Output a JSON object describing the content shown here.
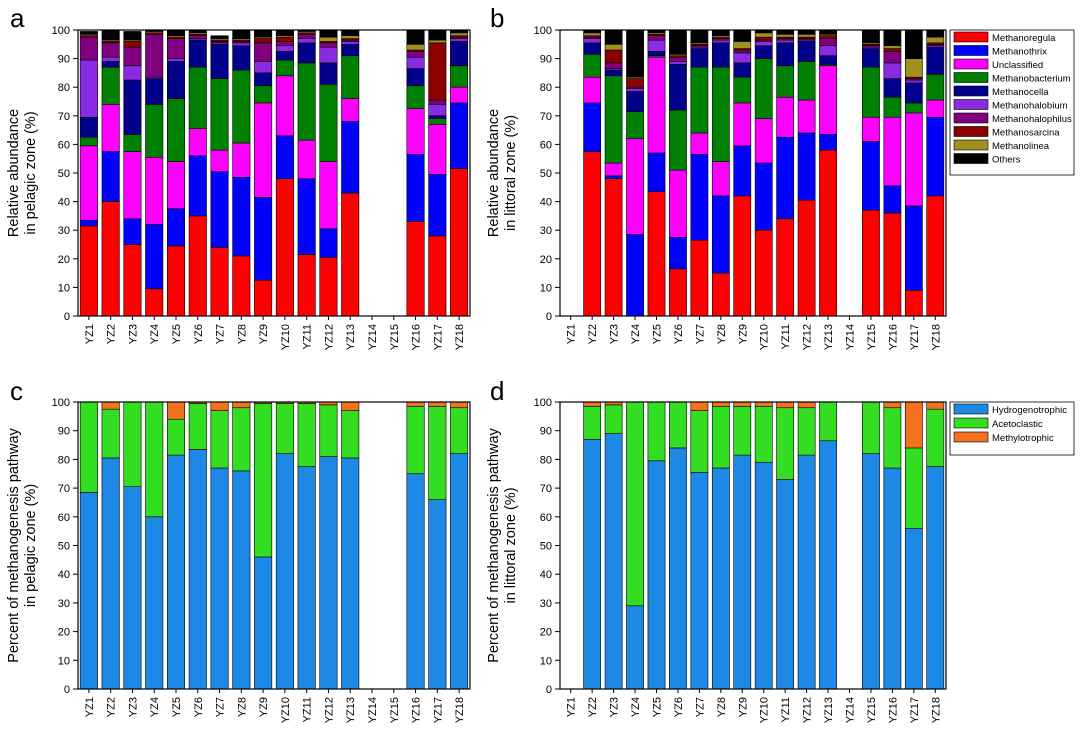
{
  "chart_data": [
    {
      "id": "a",
      "type": "stacked-bar",
      "panel_label": "a",
      "ylabel": [
        "Relative abundance",
        "in pelagic zone (%)"
      ],
      "ylim": [
        0,
        100
      ],
      "yticks": [
        0,
        10,
        20,
        30,
        40,
        50,
        60,
        70,
        80,
        90,
        100
      ],
      "categories": [
        "YZ1",
        "YZ2",
        "YZ3",
        "YZ4",
        "YZ5",
        "YZ6",
        "YZ7",
        "YZ8",
        "YZ9",
        "YZ10",
        "YZ11",
        "YZ12",
        "YZ13",
        "YZ14",
        "YZ15",
        "YZ16",
        "YZ17",
        "YZ18"
      ],
      "series": [
        {
          "name": "Methanoregula",
          "color": "#ff0000",
          "values": [
            31.5,
            40,
            25,
            9.5,
            24.5,
            35,
            24,
            21,
            12.5,
            48,
            21.5,
            20.5,
            43,
            null,
            null,
            33,
            28,
            51.5
          ]
        },
        {
          "name": "Methanothrix",
          "color": "#0000ff",
          "values": [
            2,
            17.5,
            9,
            22.5,
            13,
            21,
            26.5,
            27.5,
            29,
            15,
            26.5,
            10,
            25,
            null,
            null,
            23.5,
            21.5,
            23
          ]
        },
        {
          "name": "Unclassified",
          "color": "#ff00ff",
          "values": [
            26,
            16.5,
            23.5,
            23.5,
            16.5,
            9.5,
            7.5,
            12,
            33,
            21,
            13.5,
            23.5,
            8,
            null,
            null,
            16,
            17.5,
            5.5
          ]
        },
        {
          "name": "Methanobacterium",
          "color": "#008000",
          "values": [
            3,
            13,
            6,
            18.5,
            22,
            21.5,
            25,
            25.5,
            6,
            5.5,
            27,
            27,
            15,
            null,
            null,
            8,
            2,
            7.5
          ]
        },
        {
          "name": "Methanocella",
          "color": "#00008b",
          "values": [
            7,
            2,
            19,
            9,
            13,
            9.5,
            12,
            8.5,
            4.5,
            3,
            7,
            7.5,
            4,
            null,
            null,
            6,
            1,
            8.5
          ]
        },
        {
          "name": "Methanohalobium",
          "color": "#8a2be2",
          "values": [
            20,
            1.5,
            5,
            0.5,
            1,
            0.5,
            0.5,
            1,
            4,
            2,
            1.5,
            5.5,
            1,
            null,
            null,
            4,
            4,
            1
          ]
        },
        {
          "name": "Methanohalophilus",
          "color": "#800080",
          "values": [
            8,
            5,
            6.5,
            15,
            7,
            1,
            0.5,
            0.5,
            6.5,
            1.5,
            1.5,
            1.5,
            0.5,
            null,
            null,
            2,
            1.5,
            0.5
          ]
        },
        {
          "name": "Methanosarcina",
          "color": "#8b0000",
          "values": [
            0.5,
            0.5,
            2,
            0.5,
            0.5,
            0.5,
            0.5,
            0.5,
            1.5,
            1.5,
            0.5,
            0.5,
            0.5,
            null,
            null,
            0.5,
            20,
            0.5
          ]
        },
        {
          "name": "Methanolinea",
          "color": "#a09020",
          "values": [
            0.5,
            0.5,
            0.5,
            0.5,
            0.5,
            0.5,
            0.5,
            0.5,
            0.5,
            0.5,
            0.5,
            1.5,
            1,
            null,
            null,
            2,
            1,
            1
          ]
        },
        {
          "name": "Others",
          "color": "#000000",
          "values": [
            1,
            3.5,
            3,
            0.5,
            2,
            1,
            1,
            3,
            2.5,
            2,
            0.5,
            2.5,
            2,
            null,
            null,
            5,
            3.5,
            1
          ]
        }
      ]
    },
    {
      "id": "b",
      "type": "stacked-bar",
      "panel_label": "b",
      "ylabel": [
        "Relative abundance",
        "in littoral zone (%)"
      ],
      "ylim": [
        0,
        100
      ],
      "yticks": [
        0,
        10,
        20,
        30,
        40,
        50,
        60,
        70,
        80,
        90,
        100
      ],
      "categories": [
        "YZ1",
        "YZ2",
        "YZ3",
        "YZ4",
        "YZ5",
        "YZ6",
        "YZ7",
        "YZ8",
        "YZ9",
        "YZ10",
        "YZ11",
        "YZ12",
        "YZ13",
        "YZ14",
        "YZ15",
        "YZ16",
        "YZ17",
        "YZ18"
      ],
      "legend": {
        "position": "top-right"
      },
      "series": [
        {
          "name": "Methanoregula",
          "color": "#ff0000",
          "values": [
            null,
            57.5,
            48,
            0,
            43.5,
            16.5,
            26.5,
            15,
            42,
            30,
            34,
            40.5,
            58,
            null,
            37,
            36,
            9,
            42
          ]
        },
        {
          "name": "Methanothrix",
          "color": "#0000ff",
          "values": [
            null,
            17,
            1,
            28.5,
            13.5,
            11,
            30,
            27,
            17.5,
            23.5,
            28.5,
            23.5,
            5.5,
            null,
            24,
            9.5,
            29.5,
            27.5
          ]
        },
        {
          "name": "Unclassified",
          "color": "#ff00ff",
          "values": [
            null,
            9,
            4.5,
            33.5,
            33.5,
            23.5,
            7.5,
            12,
            15,
            15.5,
            14,
            11.5,
            24,
            null,
            8.5,
            24,
            32.5,
            6
          ]
        },
        {
          "name": "Methanobacterium",
          "color": "#008000",
          "values": [
            null,
            8,
            30.5,
            9.5,
            0.5,
            21,
            23,
            33,
            9,
            21,
            11,
            13.5,
            0.5,
            null,
            17.5,
            7,
            3.5,
            9
          ]
        },
        {
          "name": "Methanocella",
          "color": "#00008b",
          "values": [
            null,
            4,
            2,
            7,
            1.5,
            16,
            6.5,
            8.5,
            5,
            4.5,
            8,
            7,
            3,
            null,
            6.5,
            6.5,
            7,
            9.5
          ]
        },
        {
          "name": "Methanohalobium",
          "color": "#8a2be2",
          "values": [
            null,
            1.5,
            0.5,
            1,
            4,
            1,
            0.5,
            1,
            3.5,
            1.5,
            1,
            0.5,
            3.5,
            null,
            0.5,
            5.5,
            1,
            0.5
          ]
        },
        {
          "name": "Methanohalophilus",
          "color": "#800080",
          "values": [
            null,
            0.5,
            2,
            0.5,
            1.5,
            1.5,
            0.5,
            0.5,
            1,
            0.5,
            0.5,
            0.5,
            2.5,
            null,
            0.5,
            4,
            0.5,
            0.5
          ]
        },
        {
          "name": "Methanosarcina",
          "color": "#8b0000",
          "values": [
            null,
            0.5,
            4.5,
            3,
            0.5,
            0.5,
            0.5,
            0.5,
            0.5,
            1,
            0.5,
            0.5,
            1,
            null,
            0.5,
            1,
            0.5,
            0.5
          ]
        },
        {
          "name": "Methanolinea",
          "color": "#a09020",
          "values": [
            null,
            1,
            2,
            0.5,
            0.5,
            0.5,
            0.5,
            0.5,
            2.5,
            1.5,
            1,
            1,
            0.5,
            null,
            0.5,
            1,
            6.5,
            2
          ]
        },
        {
          "name": "Others",
          "color": "#000000",
          "values": [
            null,
            1,
            5,
            16.5,
            1,
            8.5,
            4.5,
            2,
            4,
            1,
            1.5,
            1.5,
            1.5,
            null,
            4.5,
            5.5,
            10,
            2.5
          ]
        }
      ]
    },
    {
      "id": "c",
      "type": "stacked-bar",
      "panel_label": "c",
      "ylabel": [
        "Percent of methanogenesis pathway",
        "in pelagic zone (%)"
      ],
      "ylim": [
        0,
        100
      ],
      "yticks": [
        0,
        10,
        20,
        30,
        40,
        50,
        60,
        70,
        80,
        90,
        100
      ],
      "categories": [
        "YZ1",
        "YZ2",
        "YZ3",
        "YZ4",
        "YZ5",
        "YZ6",
        "YZ7",
        "YZ8",
        "YZ9",
        "YZ10",
        "YZ11",
        "YZ12",
        "YZ13",
        "YZ14",
        "YZ15",
        "YZ16",
        "YZ17",
        "YZ18"
      ],
      "series": [
        {
          "name": "Hydrogenotrophic",
          "color": "#1e88e5",
          "values": [
            68.5,
            80.5,
            70.5,
            60,
            81.5,
            83.5,
            77,
            76,
            46,
            82,
            77.5,
            81,
            80.5,
            null,
            null,
            75,
            66,
            82
          ]
        },
        {
          "name": "Acetoclastic",
          "color": "#33dd22",
          "values": [
            31.5,
            17,
            29.5,
            40,
            12.5,
            16,
            20,
            22,
            53.5,
            17.5,
            22,
            18,
            16.5,
            null,
            null,
            23.5,
            32.5,
            16
          ]
        },
        {
          "name": "Methylotrophic",
          "color": "#f4721e",
          "values": [
            0,
            2.5,
            0,
            0,
            6,
            0.5,
            3,
            2,
            0.5,
            0.5,
            0.5,
            1,
            3,
            null,
            null,
            1.5,
            1.5,
            2
          ]
        }
      ]
    },
    {
      "id": "d",
      "type": "stacked-bar",
      "panel_label": "d",
      "ylabel": [
        "Percent of methanogenesis pathway",
        "in littoral zone (%)"
      ],
      "ylim": [
        0,
        100
      ],
      "yticks": [
        0,
        10,
        20,
        30,
        40,
        50,
        60,
        70,
        80,
        90,
        100
      ],
      "categories": [
        "YZ1",
        "YZ2",
        "YZ3",
        "YZ4",
        "YZ5",
        "YZ6",
        "YZ7",
        "YZ8",
        "YZ9",
        "YZ10",
        "YZ11",
        "YZ12",
        "YZ13",
        "YZ14",
        "YZ15",
        "YZ16",
        "YZ17",
        "YZ18"
      ],
      "legend": {
        "position": "top-right"
      },
      "series": [
        {
          "name": "Hydrogenotrophic",
          "color": "#1e88e5",
          "values": [
            null,
            87,
            89,
            29,
            79.5,
            84,
            75.5,
            77,
            81.5,
            79,
            73,
            81.5,
            86.5,
            null,
            82,
            77,
            56,
            77.5
          ]
        },
        {
          "name": "Acetoclastic",
          "color": "#33dd22",
          "values": [
            null,
            11.5,
            10,
            71,
            20.5,
            16,
            21.5,
            21.5,
            17,
            19.5,
            25,
            16.5,
            13.5,
            null,
            18,
            21,
            28,
            20
          ]
        },
        {
          "name": "Methylotrophic",
          "color": "#f4721e",
          "values": [
            null,
            1.5,
            1,
            0,
            0,
            0,
            3,
            1.5,
            1.5,
            1.5,
            2,
            2,
            0,
            null,
            0,
            2,
            16,
            2.5
          ]
        }
      ]
    }
  ]
}
